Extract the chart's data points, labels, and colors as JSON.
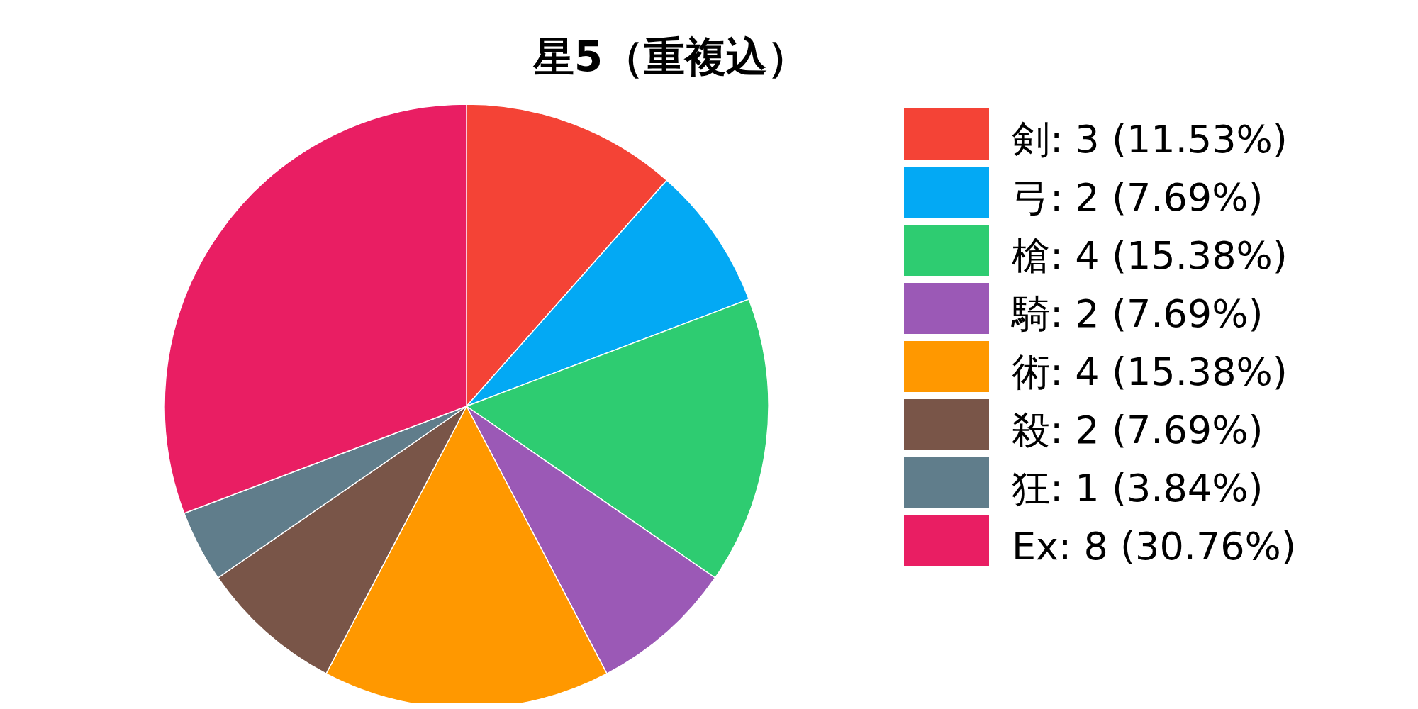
{
  "chart_data": {
    "type": "pie",
    "title": "星5（重複込）",
    "categories": [
      "剣",
      "弓",
      "槍",
      "騎",
      "術",
      "殺",
      "狂",
      "Ex"
    ],
    "values": [
      3,
      2,
      4,
      2,
      4,
      2,
      1,
      8
    ],
    "value_labels": [
      ": 3 (11.53%)",
      ": 2 (7.69%)",
      ": 4 (15.38%)",
      ": 2 (7.69%)",
      ": 4 (15.38%)",
      ": 2 (7.69%)",
      ": 1 (3.84%)",
      ": 8 (30.76%)"
    ],
    "colors": [
      "#f44336",
      "#03a9f4",
      "#2ecc71",
      "#9b59b6",
      "#ff9800",
      "#795548",
      "#607d8b",
      "#e91e63"
    ],
    "legend": "right"
  }
}
